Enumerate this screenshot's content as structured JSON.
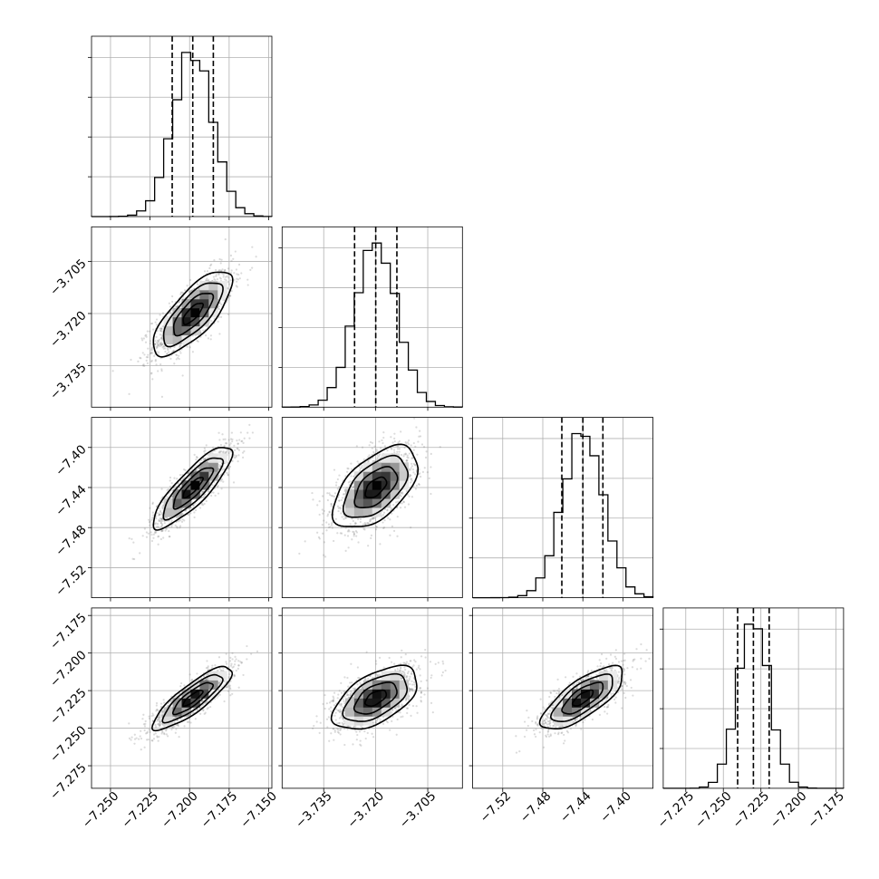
{
  "chart_data": {
    "type": "corner",
    "title": "",
    "grid": true,
    "parameters": [
      {
        "label": "",
        "median": -7.198,
        "quantiles": [
          -7.211,
          -7.198,
          -7.185
        ],
        "range": [
          -7.262,
          -7.148
        ],
        "ticks": [
          -7.25,
          -7.225,
          -7.2,
          -7.175,
          -7.15
        ],
        "tick_labels": [
          "−7.250",
          "−7.225",
          "−7.200",
          "−7.175",
          "−7.150"
        ],
        "sigma": 0.0125
      },
      {
        "label": "",
        "median": -3.72,
        "quantiles": [
          -3.7261,
          -3.72,
          -3.7139
        ],
        "range": [
          -3.747,
          -3.695
        ],
        "ticks": [
          -3.735,
          -3.72,
          -3.705
        ],
        "tick_labels": [
          "−3.735",
          "−3.720",
          "−3.705"
        ],
        "sigma": 0.0061
      },
      {
        "label": "",
        "median": -7.44,
        "quantiles": [
          -7.461,
          -7.44,
          -7.42
        ],
        "range": [
          -7.55,
          -7.37
        ],
        "ticks": [
          -7.52,
          -7.48,
          -7.44,
          -7.4
        ],
        "tick_labels": [
          "−7.52",
          "−7.48",
          "−7.44",
          "−7.40"
        ],
        "sigma": 0.0205
      },
      {
        "label": "",
        "median": -7.23,
        "quantiles": [
          -7.2405,
          -7.23,
          -7.2195
        ],
        "range": [
          -7.29,
          -7.17
        ],
        "ticks": [
          -7.275,
          -7.25,
          -7.225,
          -7.2,
          -7.175
        ],
        "tick_labels": [
          "−7.275",
          "−7.250",
          "−7.225",
          "−7.200",
          "−7.175"
        ],
        "sigma": 0.0105
      }
    ],
    "correlations": {
      "1-0": 0.75,
      "2-0": 0.85,
      "2-1": 0.55,
      "3-0": 0.85,
      "3-1": 0.55,
      "3-2": 0.75
    },
    "contour_levels_sigma": [
      0.5,
      1.0,
      1.5,
      2.0
    ],
    "colors": {
      "ink": "#000000",
      "grid": "#b0b0b0",
      "scatter": "#7f7f7f"
    }
  }
}
